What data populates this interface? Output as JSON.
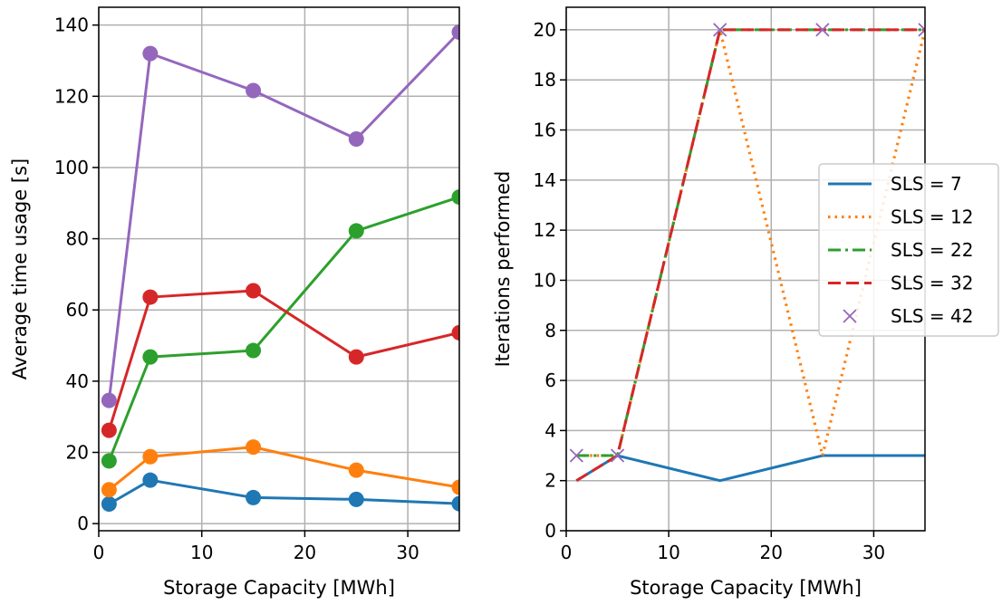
{
  "chart_data": [
    {
      "type": "line",
      "xlabel": "Storage Capacity [MWh]",
      "ylabel": "Average time usage [s]",
      "xlim": [
        0,
        35
      ],
      "ylim": [
        -2,
        145
      ],
      "xticks": [
        0,
        10,
        20,
        30
      ],
      "yticks": [
        0,
        20,
        40,
        60,
        80,
        100,
        120,
        140
      ],
      "grid": true,
      "marker": "circle",
      "x": [
        1,
        5,
        15,
        25,
        35
      ],
      "series": [
        {
          "color": "#1f77b4",
          "values": [
            5.5,
            12.2,
            7.3,
            6.8,
            5.6
          ]
        },
        {
          "color": "#ff7f0e",
          "values": [
            9.5,
            18.8,
            21.5,
            15.0,
            10.2
          ]
        },
        {
          "color": "#2ca02c",
          "values": [
            17.6,
            46.8,
            48.6,
            82.2,
            91.7
          ]
        },
        {
          "color": "#d62728",
          "values": [
            26.2,
            63.6,
            65.4,
            46.8,
            53.6
          ]
        },
        {
          "color": "#9467bd",
          "values": [
            34.6,
            132.0,
            121.6,
            108.0,
            138.0
          ]
        }
      ]
    },
    {
      "type": "line",
      "xlabel": "Storage Capacity [MWh]",
      "ylabel": "Iterations performed",
      "xlim": [
        0,
        35
      ],
      "ylim": [
        0,
        20.9
      ],
      "xticks": [
        0,
        10,
        20,
        30
      ],
      "yticks": [
        0,
        2,
        4,
        6,
        8,
        10,
        12,
        14,
        16,
        18,
        20
      ],
      "grid": true,
      "legend_position": "center-right",
      "x": [
        1,
        5,
        15,
        25,
        35
      ],
      "series": [
        {
          "name": "SLS = 7",
          "color": "#1f77b4",
          "style": "solid",
          "values": [
            2,
            3,
            2,
            3,
            3
          ]
        },
        {
          "name": "SLS = 12",
          "color": "#ff7f0e",
          "style": "dotted",
          "values": [
            3,
            3,
            20,
            3,
            20
          ]
        },
        {
          "name": "SLS = 22",
          "color": "#2ca02c",
          "style": "dashdot",
          "values": [
            3,
            3,
            20,
            20,
            20
          ]
        },
        {
          "name": "SLS = 32",
          "color": "#d62728",
          "style": "dashed",
          "values": [
            2,
            3,
            20,
            20,
            20
          ]
        },
        {
          "name": "SLS = 42",
          "color": "#9467bd",
          "style": "marker-x",
          "values": [
            3,
            3,
            20,
            20,
            20
          ]
        }
      ]
    }
  ]
}
